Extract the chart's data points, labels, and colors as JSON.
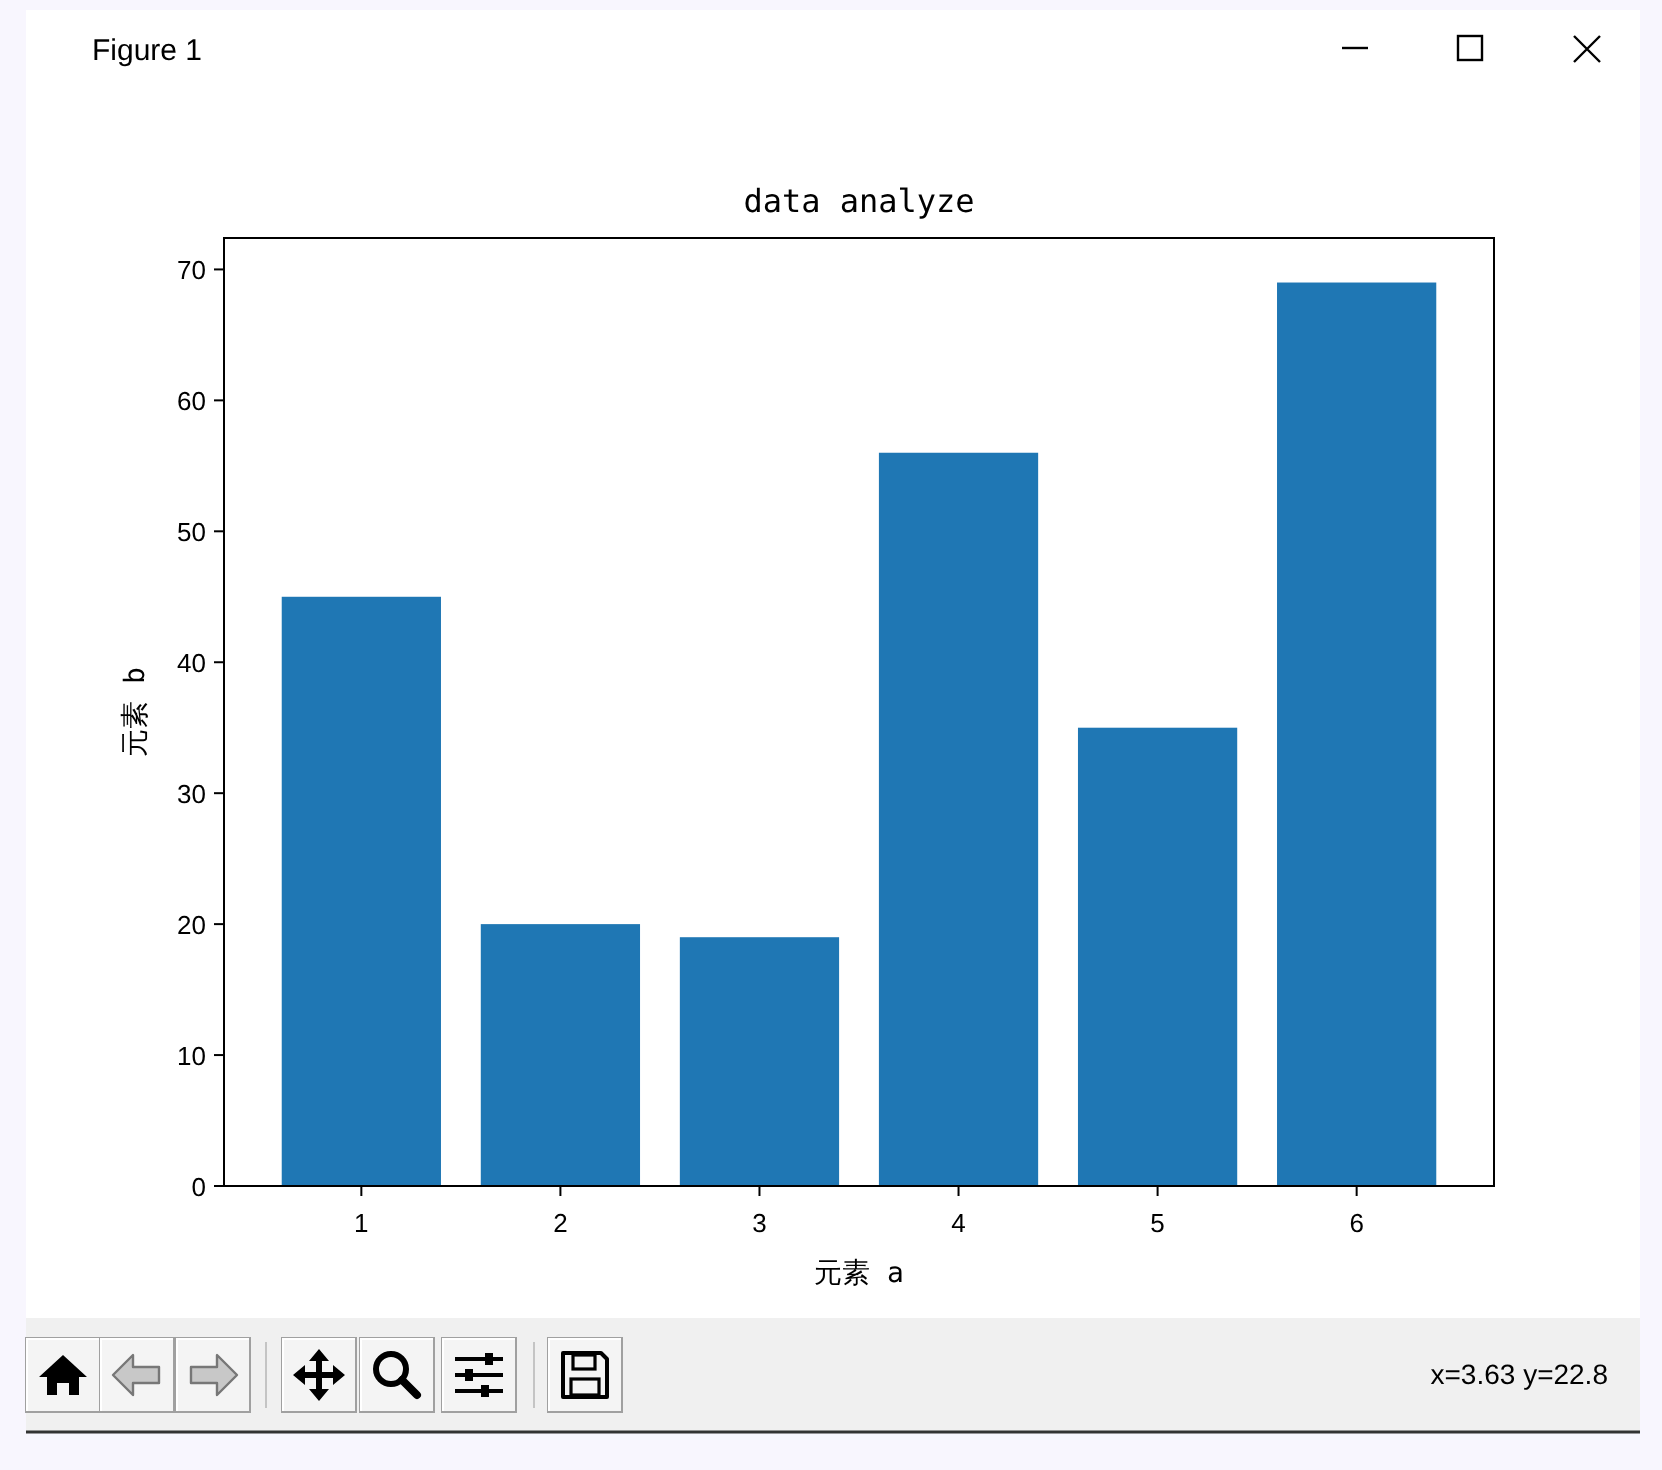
{
  "chart_data": {
    "type": "bar",
    "title": "data analyze",
    "xlabel": "元素 a",
    "ylabel": "元素 b",
    "x": [
      1,
      2,
      3,
      4,
      5,
      6
    ],
    "values": [
      45,
      20,
      19,
      56,
      35,
      69
    ],
    "color": "#1f77b4",
    "xlim": [
      0.31,
      6.69
    ],
    "xticks": [
      1,
      2,
      3,
      4,
      5,
      6
    ],
    "ylim": [
      0,
      72.4
    ],
    "yticks": [
      0,
      10,
      20,
      30,
      40,
      50,
      60,
      70
    ],
    "annotations": [
      "Figure 1",
      "x=3.63 y=22.8"
    ]
  }
}
